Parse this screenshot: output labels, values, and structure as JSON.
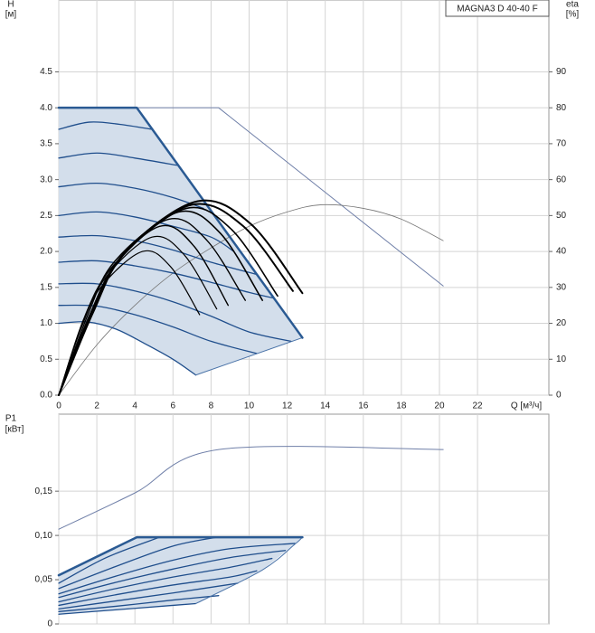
{
  "chart_data": [
    {
      "type": "line",
      "title": "MAGNA3 D 40-40 F",
      "y_label": "H",
      "y_unit": "[м]",
      "y2_label": "eta",
      "y2_unit": "[%]",
      "x_label": "Q [м³/ч]",
      "xlim": [
        0,
        25.75
      ],
      "xticks": [
        0,
        2,
        4,
        6,
        8,
        10,
        12,
        14,
        16,
        18,
        20,
        22
      ],
      "ylim": [
        0,
        5.5
      ],
      "yticks": [
        {
          "value": 0,
          "label": "0.0"
        },
        0.5,
        {
          "value": 1,
          "label": "1.0"
        },
        1.5,
        {
          "value": 2,
          "label": "2.0"
        },
        2.5,
        {
          "value": 3,
          "label": "3.0"
        },
        3.5,
        {
          "value": 4,
          "label": "4.0"
        },
        4.5
      ],
      "y2lim": [
        0,
        110
      ],
      "y2ticks": [
        0,
        10,
        20,
        30,
        40,
        50,
        60,
        70,
        80,
        90
      ],
      "grid": true,
      "areas": [
        {
          "color": "#d3deeb",
          "x": [
            0,
            4.1,
            12.8,
            7.2,
            6,
            4.5,
            3,
            1.5,
            0
          ],
          "values": [
            4,
            4,
            0.8,
            0.28,
            0.5,
            0.72,
            0.92,
            1.02,
            1.0
          ]
        }
      ],
      "series": [
        {
          "color": "#6f7fa8",
          "width": 1,
          "x": [
            0,
            8.4,
            20.2
          ],
          "values": [
            4.0,
            4.0,
            1.52
          ]
        },
        {
          "color": "#777777",
          "width": 0.8,
          "smooth": true,
          "axis": "y2",
          "x": [
            0,
            2,
            4,
            6,
            8,
            10,
            12,
            13.8,
            16,
            18,
            20.2
          ],
          "values": [
            0,
            14,
            25,
            34,
            41,
            47,
            51,
            53,
            52,
            49,
            43
          ]
        },
        {
          "color": "#1f4e8c",
          "width": 1.3,
          "smooth": true,
          "x": [
            0,
            1.6,
            3.2,
            4.9
          ],
          "values": [
            3.7,
            3.8,
            3.77,
            3.7
          ]
        },
        {
          "color": "#1f4e8c",
          "width": 1.3,
          "smooth": true,
          "x": [
            0,
            2,
            4,
            6.2
          ],
          "values": [
            3.3,
            3.37,
            3.3,
            3.2
          ]
        },
        {
          "color": "#1f4e8c",
          "width": 1.3,
          "smooth": true,
          "x": [
            0,
            2,
            4,
            6,
            7.6
          ],
          "values": [
            2.9,
            2.95,
            2.88,
            2.75,
            2.6
          ]
        },
        {
          "color": "#1f4e8c",
          "width": 1.3,
          "smooth": true,
          "x": [
            0,
            2,
            4,
            6,
            8,
            9.2
          ],
          "values": [
            2.5,
            2.55,
            2.48,
            2.35,
            2.2,
            2.0
          ]
        },
        {
          "color": "#1f4e8c",
          "width": 1.3,
          "smooth": true,
          "x": [
            0,
            2,
            4,
            6,
            8,
            10.4
          ],
          "values": [
            2.2,
            2.22,
            2.15,
            2.02,
            1.85,
            1.68
          ]
        },
        {
          "color": "#1f4e8c",
          "width": 1.3,
          "smooth": true,
          "x": [
            0,
            2,
            4,
            6,
            8,
            10,
            11.3
          ],
          "values": [
            1.85,
            1.87,
            1.8,
            1.7,
            1.57,
            1.43,
            1.35
          ]
        },
        {
          "color": "#1f4e8c",
          "width": 1.3,
          "smooth": true,
          "x": [
            0,
            2,
            4,
            6,
            8,
            10,
            12.2
          ],
          "values": [
            1.55,
            1.55,
            1.45,
            1.3,
            1.1,
            0.88,
            0.75
          ]
        },
        {
          "color": "#1f4e8c",
          "width": 1.3,
          "smooth": true,
          "x": [
            0,
            2,
            4,
            6,
            8,
            10.4
          ],
          "values": [
            1.25,
            1.24,
            1.12,
            0.95,
            0.75,
            0.58
          ]
        },
        {
          "color": "#1f4e8c",
          "width": 1.3,
          "smooth": true,
          "x": [
            0,
            1.5,
            3,
            4.5,
            6,
            7.2
          ],
          "values": [
            1.0,
            1.02,
            0.92,
            0.72,
            0.5,
            0.28
          ]
        },
        {
          "color": "#4a73a8",
          "width": 1,
          "x": [
            7.2,
            12.8
          ],
          "values": [
            0.28,
            0.8
          ]
        },
        {
          "color": "#2a5a93",
          "width": 2.5,
          "x": [
            0,
            4.1,
            12.8
          ],
          "values": [
            4.0,
            4.0,
            0.8
          ]
        },
        {
          "color": "#000000",
          "width": 2,
          "smooth": true,
          "axis": "y2",
          "x": [
            0,
            1.8,
            3.7,
            7.3,
            10.1,
            12.8
          ],
          "values": [
            0,
            24,
            41,
            54,
            47.6,
            28.4
          ]
        },
        {
          "color": "#000000",
          "width": 2,
          "smooth": true,
          "axis": "y2",
          "x": [
            0,
            1.8,
            3.5,
            7,
            9.7,
            12.3
          ],
          "values": [
            0,
            23,
            40,
            53,
            47,
            29
          ]
        },
        {
          "color": "#000000",
          "width": 1.6,
          "smooth": true,
          "axis": "y2",
          "x": [
            0,
            1.7,
            3.4,
            6.7,
            9.1,
            11.5
          ],
          "values": [
            0,
            23,
            39,
            52,
            46,
            27.6
          ]
        },
        {
          "color": "#000000",
          "width": 1.6,
          "smooth": true,
          "axis": "y2",
          "x": [
            0,
            1.6,
            3.2,
            6.3,
            8.5,
            10.7
          ],
          "values": [
            0,
            22,
            38,
            51,
            45,
            26.4
          ]
        },
        {
          "color": "#000000",
          "width": 1.4,
          "smooth": true,
          "axis": "y2",
          "x": [
            0,
            1.5,
            2.9,
            5.8,
            7.8,
            9.8
          ],
          "values": [
            0,
            22,
            37,
            49,
            43,
            26.4
          ]
        },
        {
          "color": "#000000",
          "width": 1.4,
          "smooth": true,
          "axis": "y2",
          "x": [
            0,
            1.3,
            2.7,
            5.3,
            7.1,
            8.9
          ],
          "values": [
            0,
            21,
            35,
            47,
            41.5,
            25
          ]
        },
        {
          "color": "#000000",
          "width": 1.2,
          "smooth": true,
          "axis": "y2",
          "x": [
            0,
            1.2,
            2.5,
            4.9,
            6.6,
            8.3
          ],
          "values": [
            0,
            19,
            33,
            44,
            39,
            24
          ]
        },
        {
          "color": "#000000",
          "width": 1.2,
          "smooth": true,
          "axis": "y2",
          "x": [
            0,
            1.1,
            2.2,
            4.4,
            5.9,
            7.4
          ],
          "values": [
            0,
            18,
            30,
            40,
            35.6,
            22.4
          ]
        }
      ]
    },
    {
      "type": "line",
      "y_label": "P1",
      "y_unit": "[кВт]",
      "xlim": [
        0,
        25.75
      ],
      "ylim": [
        0,
        0.237
      ],
      "yticks": [
        0,
        {
          "value": 0.05,
          "label": "0,05"
        },
        {
          "value": 0.1,
          "label": "0,10"
        },
        {
          "value": 0.15,
          "label": "0,15"
        }
      ],
      "grid": true,
      "areas": [
        {
          "color": "#d3deeb",
          "x": [
            0,
            4.1,
            12.8,
            12.4,
            10.7,
            7.2,
            6,
            3,
            0
          ],
          "values": [
            0.055,
            0.098,
            0.098,
            0.09,
            0.061,
            0.023,
            0.021,
            0.016,
            0.011
          ]
        }
      ],
      "series": [
        {
          "color": "#6f7fa8",
          "width": 1,
          "smooth": true,
          "x": [
            0,
            4,
            8.4,
            20.2
          ],
          "values": [
            0.107,
            0.148,
            0.197,
            0.197
          ]
        },
        {
          "color": "#1f4e8c",
          "width": 1.3,
          "smooth": true,
          "x": [
            0,
            2.5,
            5.3
          ],
          "values": [
            0.046,
            0.075,
            0.098
          ]
        },
        {
          "color": "#1f4e8c",
          "width": 1.3,
          "smooth": true,
          "x": [
            0,
            3,
            6,
            8.3
          ],
          "values": [
            0.04,
            0.065,
            0.088,
            0.098
          ]
        },
        {
          "color": "#1f4e8c",
          "width": 1.3,
          "smooth": true,
          "x": [
            0,
            3,
            6,
            9,
            12.4
          ],
          "values": [
            0.034,
            0.054,
            0.072,
            0.085,
            0.091
          ]
        },
        {
          "color": "#1f4e8c",
          "width": 1.3,
          "smooth": true,
          "x": [
            0,
            3,
            6,
            9,
            11.9
          ],
          "values": [
            0.03,
            0.047,
            0.062,
            0.075,
            0.083
          ]
        },
        {
          "color": "#1f4e8c",
          "width": 1.3,
          "smooth": true,
          "x": [
            0,
            3,
            6,
            9,
            11.2
          ],
          "values": [
            0.025,
            0.04,
            0.053,
            0.064,
            0.074
          ]
        },
        {
          "color": "#1f4e8c",
          "width": 1.3,
          "smooth": true,
          "x": [
            0,
            3,
            6,
            9,
            10.4
          ],
          "values": [
            0.021,
            0.033,
            0.044,
            0.053,
            0.06
          ]
        },
        {
          "color": "#1f4e8c",
          "width": 1.3,
          "smooth": true,
          "x": [
            0,
            3,
            6,
            9.4
          ],
          "values": [
            0.017,
            0.026,
            0.035,
            0.046
          ]
        },
        {
          "color": "#1f4e8c",
          "width": 1.3,
          "smooth": true,
          "x": [
            0,
            3,
            6,
            8.4
          ],
          "values": [
            0.014,
            0.02,
            0.027,
            0.032
          ]
        },
        {
          "color": "#1f4e8c",
          "width": 1.3,
          "smooth": true,
          "x": [
            0,
            3,
            6,
            7.2
          ],
          "values": [
            0.011,
            0.016,
            0.021,
            0.023
          ]
        },
        {
          "color": "#4a73a8",
          "width": 1,
          "smooth": true,
          "x": [
            7.2,
            10.7,
            12.4,
            12.8
          ],
          "values": [
            0.023,
            0.061,
            0.09,
            0.098
          ]
        },
        {
          "color": "#2a5a93",
          "width": 2.5,
          "x": [
            0,
            4.1,
            12.8
          ],
          "values": [
            0.055,
            0.098,
            0.098
          ]
        }
      ]
    }
  ]
}
